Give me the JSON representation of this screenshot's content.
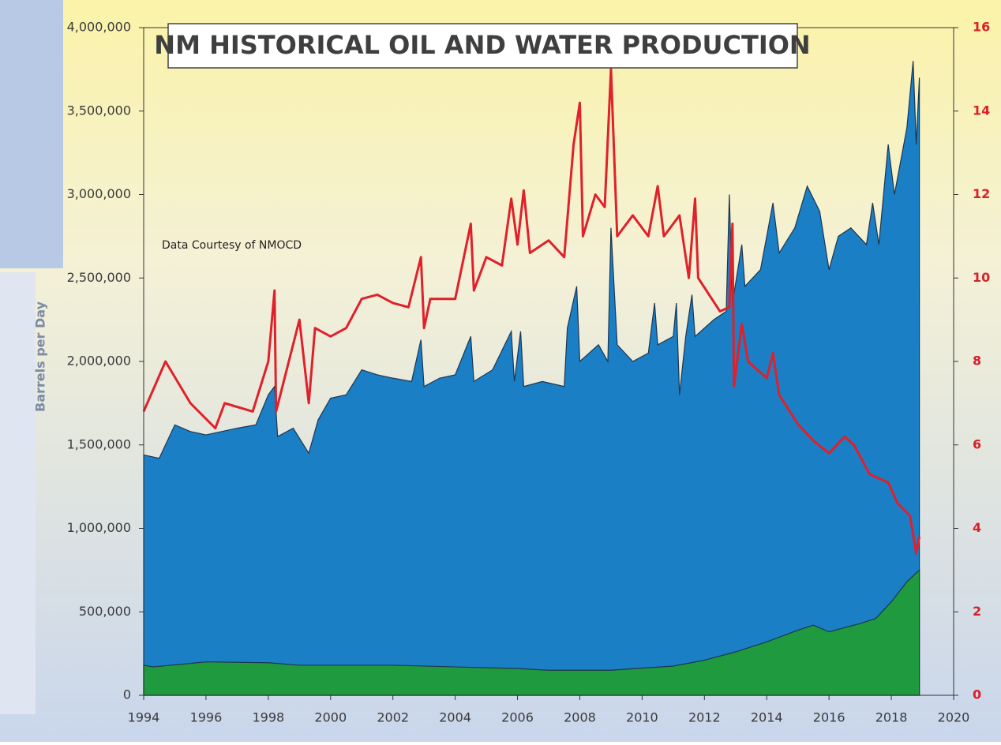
{
  "chart_data": {
    "type": "area",
    "title": "NM HISTORICAL OIL AND WATER PRODUCTION",
    "annotation": "Data Courtesy of NMOCD",
    "ylabel": "Barrels per Day",
    "xlim": [
      1994,
      2020
    ],
    "xticks": [
      1994,
      1996,
      1998,
      2000,
      2002,
      2004,
      2006,
      2008,
      2010,
      2012,
      2014,
      2016,
      2018,
      2020
    ],
    "ylim": [
      0,
      4000000
    ],
    "yticks": [
      0,
      {
        "value": 500000,
        "label": "500,000"
      },
      {
        "value": 1000000,
        "label": "1,000,000"
      },
      {
        "value": 1500000,
        "label": "1,500,000"
      },
      {
        "value": 2000000,
        "label": "2,000,000"
      },
      {
        "value": 2500000,
        "label": "2,500,000"
      },
      {
        "value": 3000000,
        "label": "3,000,000"
      },
      {
        "value": 3500000,
        "label": "3,500,000"
      },
      {
        "value": 4000000,
        "label": "4,000,000"
      }
    ],
    "y2lim": [
      0,
      16
    ],
    "y2ticks": [
      0,
      2,
      4,
      6,
      8,
      10,
      12,
      14,
      16
    ],
    "series": [
      {
        "type": "area",
        "color": "#1b7fc6",
        "x": [
          1994.0,
          1994.5,
          1995.0,
          1995.5,
          1996.0,
          1996.5,
          1997.0,
          1997.6,
          1998.0,
          1998.2,
          1998.3,
          1998.8,
          1999.3,
          1999.6,
          2000.0,
          2000.5,
          2001.0,
          2001.5,
          2002.0,
          2002.6,
          2002.9,
          2003.0,
          2003.5,
          2004.0,
          2004.5,
          2004.6,
          2005.2,
          2005.8,
          2005.9,
          2006.1,
          2006.2,
          2006.8,
          2007.5,
          2007.6,
          2007.9,
          2008.0,
          2008.6,
          2008.9,
          2009.0,
          2009.2,
          2009.7,
          2010.2,
          2010.4,
          2010.5,
          2011.0,
          2011.1,
          2011.2,
          2011.4,
          2011.6,
          2011.7,
          2012.3,
          2012.7,
          2012.8,
          2012.9,
          2013.2,
          2013.3,
          2013.8,
          2014.2,
          2014.4,
          2014.9,
          2015.3,
          2015.7,
          2016.0,
          2016.3,
          2016.7,
          2017.2,
          2017.4,
          2017.6,
          2017.9,
          2018.1,
          2018.5,
          2018.7,
          2018.8,
          2018.9
        ],
        "values": [
          1440000,
          1420000,
          1620000,
          1580000,
          1560000,
          1580000,
          1600000,
          1620000,
          1800000,
          1850000,
          1550000,
          1600000,
          1450000,
          1650000,
          1780000,
          1800000,
          1950000,
          1920000,
          1900000,
          1880000,
          2130000,
          1850000,
          1900000,
          1920000,
          2150000,
          1880000,
          1950000,
          2180000,
          1880000,
          2180000,
          1850000,
          1880000,
          1850000,
          2200000,
          2450000,
          2000000,
          2100000,
          2000000,
          2800000,
          2100000,
          2000000,
          2050000,
          2350000,
          2100000,
          2150000,
          2350000,
          1800000,
          2150000,
          2400000,
          2150000,
          2250000,
          2300000,
          3000000,
          2350000,
          2700000,
          2450000,
          2550000,
          2950000,
          2650000,
          2800000,
          3050000,
          2900000,
          2550000,
          2750000,
          2800000,
          2700000,
          2950000,
          2700000,
          3300000,
          3000000,
          3400000,
          3800000,
          3300000,
          3700000
        ]
      },
      {
        "type": "area",
        "color": "#1f9a3e",
        "x": [
          1994.0,
          1994.3,
          1996.0,
          1998.0,
          1999.0,
          2002.0,
          2004.0,
          2006.0,
          2007.0,
          2009.0,
          2011.0,
          2012.0,
          2013.0,
          2014.0,
          2015.0,
          2015.5,
          2016.0,
          2017.0,
          2017.5,
          2018.0,
          2018.5,
          2018.9
        ],
        "values": [
          180000,
          170000,
          200000,
          195000,
          180000,
          180000,
          170000,
          160000,
          150000,
          150000,
          175000,
          210000,
          260000,
          320000,
          390000,
          420000,
          380000,
          430000,
          460000,
          560000,
          680000,
          750000
        ]
      },
      {
        "type": "line",
        "axis": "y2",
        "color": "#e0202a",
        "x": [
          1994.0,
          1994.7,
          1995.5,
          1996.3,
          1996.6,
          1997.5,
          1998.0,
          1998.2,
          1998.25,
          1999.0,
          1999.3,
          1999.5,
          2000.0,
          2000.5,
          2001.0,
          2001.5,
          2002.0,
          2002.5,
          2002.9,
          2003.0,
          2003.2,
          2004.0,
          2004.5,
          2004.6,
          2005.0,
          2005.5,
          2005.8,
          2006.0,
          2006.2,
          2006.4,
          2007.0,
          2007.5,
          2007.8,
          2008.0,
          2008.1,
          2008.5,
          2008.8,
          2009.0,
          2009.2,
          2009.7,
          2010.2,
          2010.5,
          2010.7,
          2011.2,
          2011.5,
          2011.7,
          2011.8,
          2012.5,
          2012.8,
          2012.9,
          2012.95,
          2013.2,
          2013.4,
          2014.0,
          2014.2,
          2014.4,
          2015.0,
          2015.5,
          2016.0,
          2016.5,
          2016.8,
          2017.3,
          2017.9,
          2018.2,
          2018.6,
          2018.8,
          2018.9
        ],
        "values": [
          6.8,
          8.0,
          7.0,
          6.4,
          7.0,
          6.8,
          8.0,
          9.7,
          6.8,
          9.0,
          7.0,
          8.8,
          8.6,
          8.8,
          9.5,
          9.6,
          9.4,
          9.3,
          10.5,
          8.8,
          9.5,
          9.5,
          11.3,
          9.7,
          10.5,
          10.3,
          11.9,
          10.8,
          12.1,
          10.6,
          10.9,
          10.5,
          13.2,
          14.2,
          11.0,
          12.0,
          11.7,
          15.0,
          11.0,
          11.5,
          11.0,
          12.2,
          11.0,
          11.5,
          10.0,
          11.9,
          10.0,
          9.2,
          9.3,
          11.3,
          7.4,
          8.9,
          8.0,
          7.6,
          8.2,
          7.2,
          6.5,
          6.1,
          5.8,
          6.2,
          6.0,
          5.3,
          5.1,
          4.6,
          4.3,
          3.4,
          3.8
        ]
      }
    ]
  }
}
